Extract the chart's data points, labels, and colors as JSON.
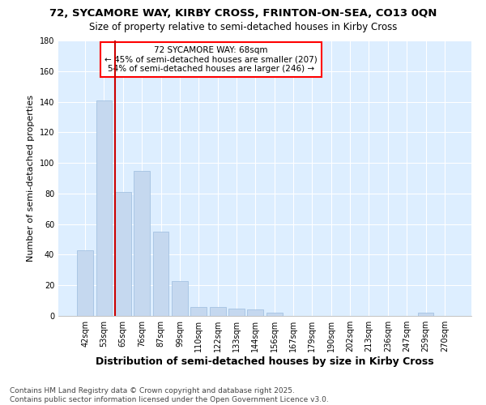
{
  "title_line1": "72, SYCAMORE WAY, KIRBY CROSS, FRINTON-ON-SEA, CO13 0QN",
  "title_line2": "Size of property relative to semi-detached houses in Kirby Cross",
  "xlabel": "Distribution of semi-detached houses by size in Kirby Cross",
  "ylabel": "Number of semi-detached properties",
  "categories": [
    "42sqm",
    "53sqm",
    "65sqm",
    "76sqm",
    "87sqm",
    "99sqm",
    "110sqm",
    "122sqm",
    "133sqm",
    "144sqm",
    "156sqm",
    "167sqm",
    "179sqm",
    "190sqm",
    "202sqm",
    "213sqm",
    "236sqm",
    "247sqm",
    "259sqm",
    "270sqm"
  ],
  "values": [
    43,
    141,
    81,
    95,
    55,
    23,
    6,
    6,
    5,
    4,
    2,
    0,
    0,
    0,
    0,
    0,
    0,
    0,
    2,
    0
  ],
  "bar_color": "#c5d8ef",
  "bar_edge_color": "#9bbcde",
  "vline_color": "#cc0000",
  "vline_x_index": 2,
  "annotation_text": "72 SYCAMORE WAY: 68sqm\n← 45% of semi-detached houses are smaller (207)\n54% of semi-detached houses are larger (246) →",
  "ylim": [
    0,
    180
  ],
  "yticks": [
    0,
    20,
    40,
    60,
    80,
    100,
    120,
    140,
    160,
    180
  ],
  "fig_background": "#ffffff",
  "plot_background": "#ddeeff",
  "grid_color": "#ffffff",
  "footer_line1": "Contains HM Land Registry data © Crown copyright and database right 2025.",
  "footer_line2": "Contains public sector information licensed under the Open Government Licence v3.0.",
  "title_fontsize": 9.5,
  "subtitle_fontsize": 8.5,
  "ylabel_fontsize": 8,
  "xlabel_fontsize": 9,
  "tick_fontsize": 7,
  "annotation_fontsize": 7.5,
  "footer_fontsize": 6.5
}
